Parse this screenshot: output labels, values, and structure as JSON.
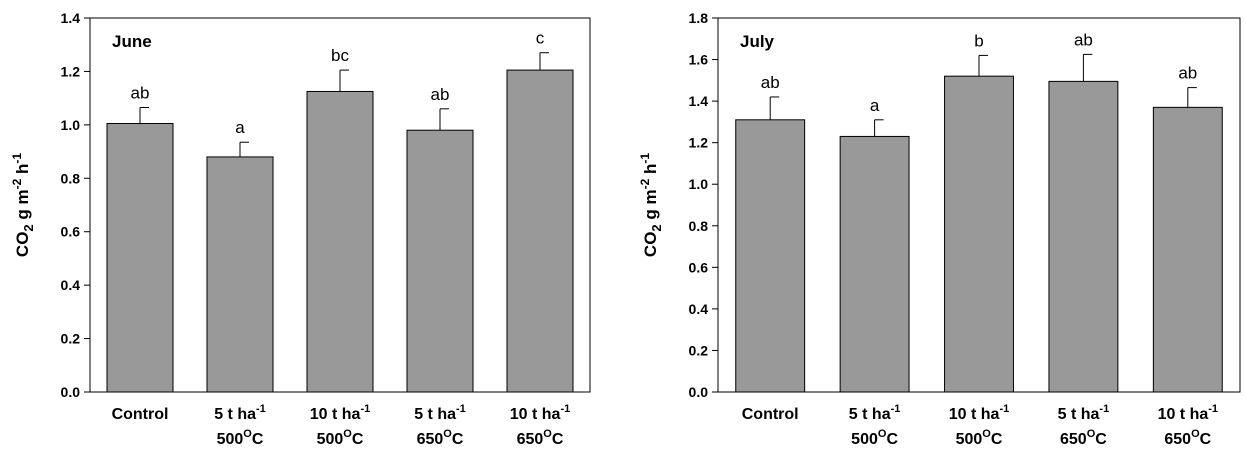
{
  "chart_data": [
    {
      "type": "bar",
      "title": "June",
      "ylabel": {
        "base": "CO",
        "sub1": "2",
        "mid": " g m",
        "sup1": "-2",
        "tail": " h",
        "sup2": "-1"
      },
      "ylim": [
        0,
        1.4
      ],
      "ytick_step": 0.2,
      "ytick_labels": [
        "0.0",
        "0.2",
        "0.4",
        "0.6",
        "0.8",
        "1.0",
        "1.2",
        "1.4"
      ],
      "categories": [
        {
          "line1": "Control",
          "line1_sup": "",
          "line2": "",
          "line2_sup": "",
          "line2_tail": ""
        },
        {
          "line1": "5 t ha",
          "line1_sup": "-1",
          "line2": "500",
          "line2_sup": "O",
          "line2_tail": "C"
        },
        {
          "line1": "10 t ha",
          "line1_sup": "-1",
          "line2": "500",
          "line2_sup": "O",
          "line2_tail": "C"
        },
        {
          "line1": "5 t ha",
          "line1_sup": "-1",
          "line2": "650",
          "line2_sup": "O",
          "line2_tail": "C"
        },
        {
          "line1": "10 t ha",
          "line1_sup": "-1",
          "line2": "650",
          "line2_sup": "O",
          "line2_tail": "C"
        }
      ],
      "values": [
        1.005,
        0.88,
        1.125,
        0.98,
        1.205
      ],
      "errors": [
        0.06,
        0.055,
        0.08,
        0.08,
        0.065
      ],
      "significance": [
        "ab",
        "a",
        "bc",
        "ab",
        "c"
      ],
      "bar_color": "#999999",
      "grid": false
    },
    {
      "type": "bar",
      "title": "July",
      "ylabel": {
        "base": "CO",
        "sub1": "2",
        "mid": " g m",
        "sup1": "-2",
        "tail": " h",
        "sup2": "-1"
      },
      "ylim": [
        0,
        1.8
      ],
      "ytick_step": 0.2,
      "ytick_labels": [
        "0.0",
        "0.2",
        "0.4",
        "0.6",
        "0.8",
        "1.0",
        "1.2",
        "1.4",
        "1.6",
        "1.8"
      ],
      "categories": [
        {
          "line1": "Control",
          "line1_sup": "",
          "line2": "",
          "line2_sup": "",
          "line2_tail": ""
        },
        {
          "line1": "5 t ha",
          "line1_sup": "-1",
          "line2": "500",
          "line2_sup": "O",
          "line2_tail": "C"
        },
        {
          "line1": "10 t ha",
          "line1_sup": "-1",
          "line2": "500",
          "line2_sup": "O",
          "line2_tail": "C"
        },
        {
          "line1": "5 t ha",
          "line1_sup": "-1",
          "line2": "650",
          "line2_sup": "O",
          "line2_tail": "C"
        },
        {
          "line1": "10 t ha",
          "line1_sup": "-1",
          "line2": "650",
          "line2_sup": "O",
          "line2_tail": "C"
        }
      ],
      "values": [
        1.31,
        1.23,
        1.52,
        1.495,
        1.37
      ],
      "errors": [
        0.11,
        0.08,
        0.1,
        0.13,
        0.095
      ],
      "significance": [
        "ab",
        "a",
        "b",
        "ab",
        "ab"
      ],
      "bar_color": "#999999",
      "grid": false
    }
  ]
}
